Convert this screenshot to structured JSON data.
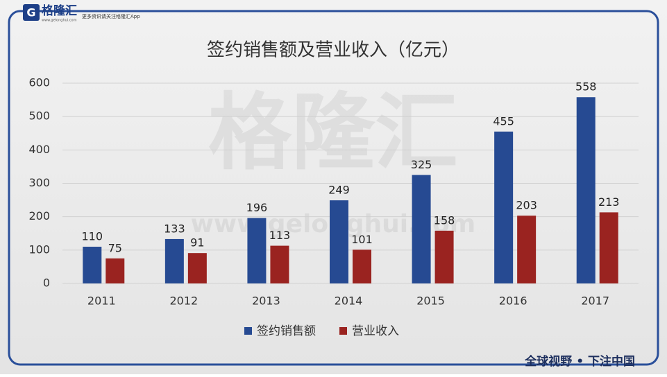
{
  "brand": {
    "logo": "格隆汇",
    "logo_url": "www.gelonghui.com",
    "tagline": "更多资讯请关注格隆汇App",
    "slogan": "全球视野 • 下注中国",
    "watermark": "格隆汇",
    "watermark_url": "www.gelonghui.com"
  },
  "chart_data": {
    "type": "bar",
    "title": "签约销售额及营业收入（亿元）",
    "categories": [
      "2011",
      "2012",
      "2013",
      "2014",
      "2015",
      "2016",
      "2017"
    ],
    "series": [
      {
        "name": "签约销售额",
        "color": "#264a92",
        "values": [
          110,
          133,
          196,
          249,
          325,
          455,
          558
        ]
      },
      {
        "name": "营业收入",
        "color": "#9a2320",
        "values": [
          75,
          91,
          113,
          101,
          158,
          203,
          213
        ]
      }
    ],
    "ylim": [
      0,
      600
    ],
    "yticks": [
      0,
      100,
      200,
      300,
      400,
      500,
      600
    ],
    "grid": true,
    "legend": "bottom"
  }
}
